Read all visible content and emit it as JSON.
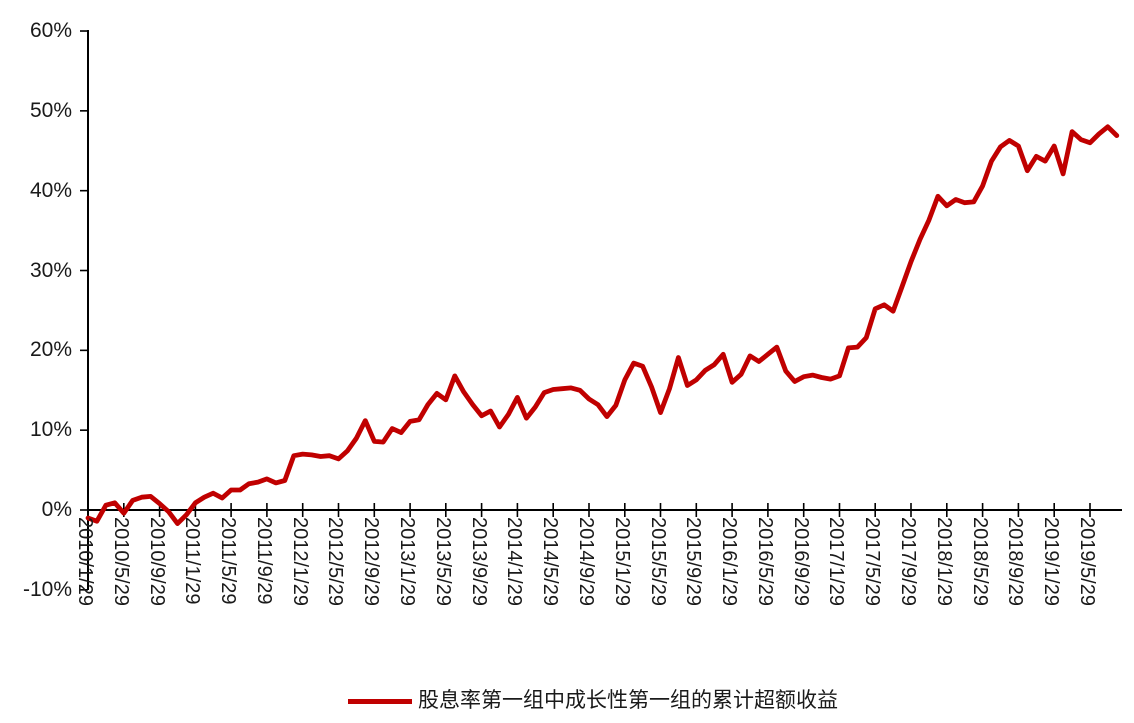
{
  "chart_data": {
    "type": "line",
    "title": "",
    "xlabel": "",
    "ylabel": "",
    "grid": "off",
    "legend_position": "bottom-center",
    "ylim": [
      -10,
      60
    ],
    "y_ticks_pct": [
      60,
      50,
      40,
      30,
      20,
      10,
      0,
      -10
    ],
    "y_tick_labels": [
      "60%",
      "50%",
      "40%",
      "30%",
      "20%",
      "10%",
      "0%",
      "-10%"
    ],
    "x_tick_labels": [
      "2010/1/29",
      "2010/5/29",
      "2010/9/29",
      "2011/1/29",
      "2011/5/29",
      "2011/9/29",
      "2012/1/29",
      "2012/5/29",
      "2012/9/29",
      "2013/1/29",
      "2013/5/29",
      "2013/9/29",
      "2014/1/29",
      "2014/5/29",
      "2014/9/29",
      "2015/1/29",
      "2015/5/29",
      "2015/9/29",
      "2016/1/29",
      "2016/5/29",
      "2016/9/29",
      "2017/1/29",
      "2017/5/29",
      "2017/9/29",
      "2018/1/29",
      "2018/5/29",
      "2018/9/29",
      "2019/1/29",
      "2019/5/29"
    ],
    "x_tick_every_n_points": 4,
    "series": [
      {
        "name": "股息率第一组中成长性第一组的累计超额收益",
        "color": "#C00000",
        "start": "2010/1/29",
        "frequency": "monthly",
        "unit": "%",
        "values": [
          -1.0,
          -1.4,
          0.6,
          0.9,
          -0.4,
          1.2,
          1.6,
          1.7,
          0.8,
          -0.2,
          -1.7,
          -0.6,
          0.9,
          1.6,
          2.1,
          1.5,
          2.5,
          2.5,
          3.3,
          3.5,
          3.9,
          3.4,
          3.7,
          6.8,
          7.0,
          6.9,
          6.7,
          6.8,
          6.4,
          7.4,
          9.0,
          11.2,
          8.6,
          8.5,
          10.2,
          9.7,
          11.1,
          11.3,
          13.2,
          14.6,
          13.8,
          16.8,
          14.8,
          13.2,
          11.8,
          12.4,
          10.4,
          12.0,
          14.1,
          11.5,
          12.9,
          14.7,
          15.1,
          15.2,
          15.3,
          15.0,
          13.9,
          13.2,
          11.7,
          13.1,
          16.3,
          18.4,
          18.0,
          15.4,
          12.2,
          15.2,
          19.1,
          15.6,
          16.3,
          17.5,
          18.2,
          19.5,
          16.0,
          17.0,
          19.3,
          18.6,
          19.5,
          20.4,
          17.4,
          16.1,
          16.7,
          16.9,
          16.6,
          16.4,
          16.8,
          20.3,
          20.4,
          21.6,
          25.2,
          25.7,
          24.9,
          28.0,
          31.1,
          33.9,
          36.3,
          39.3,
          38.1,
          38.9,
          38.5,
          38.6,
          40.6,
          43.7,
          45.5,
          46.3,
          45.6,
          42.5,
          44.3,
          43.7,
          45.6,
          42.1,
          47.4,
          46.4,
          46.0,
          47.1,
          48.0,
          46.9
        ]
      }
    ]
  },
  "legend": {
    "label": "股息率第一组中成长性第一组的累计超额收益"
  },
  "colors": {
    "line": "#C00000",
    "axis": "#000000",
    "text": "#1a1a1a",
    "background": "#FFFFFF"
  }
}
